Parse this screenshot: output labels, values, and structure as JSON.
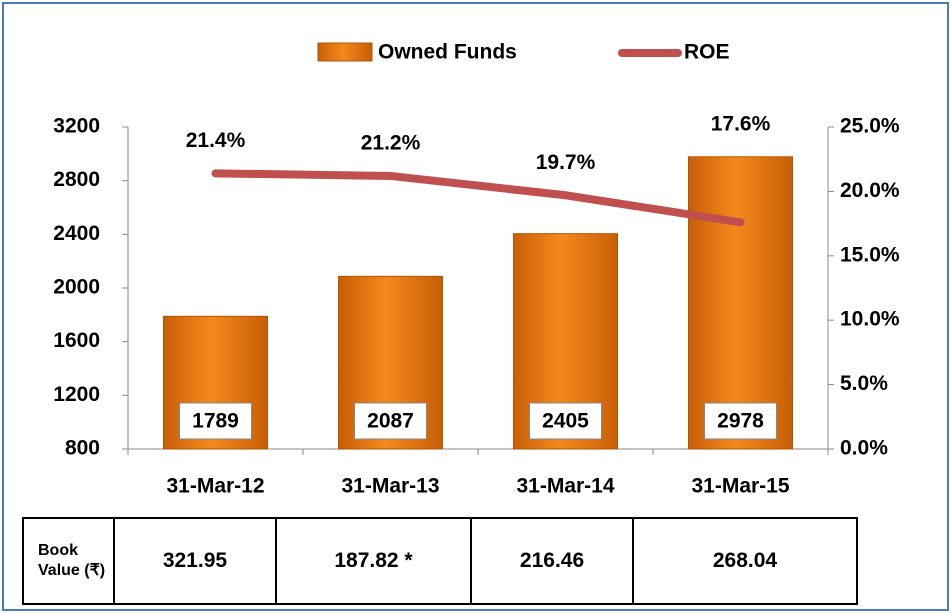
{
  "chart_data": {
    "type": "bar",
    "categories": [
      "31-Mar-12",
      "31-Mar-13",
      "31-Mar-14",
      "31-Mar-15"
    ],
    "series": [
      {
        "name": "Owned Funds",
        "color": "#f07d12",
        "values": [
          1789,
          2087,
          2405,
          2978
        ]
      },
      {
        "name": "ROE",
        "type": "line",
        "axis": "y2",
        "color": "#c0504d",
        "values": [
          21.4,
          21.2,
          19.7,
          17.6
        ],
        "value_labels": [
          "21.4%",
          "21.2%",
          "19.7%",
          "17.6%"
        ]
      }
    ],
    "ylim": [
      800,
      3200
    ],
    "yticks": [
      800,
      1200,
      1600,
      2000,
      2400,
      2800,
      3200
    ],
    "y2lim": [
      0,
      25
    ],
    "y2ticks": [
      {
        "value": 0,
        "label": "0.0%"
      },
      {
        "value": 5,
        "label": "5.0%"
      },
      {
        "value": 10,
        "label": "10.0%"
      },
      {
        "value": 15,
        "label": "15.0%"
      },
      {
        "value": 20,
        "label": "20.0%"
      },
      {
        "value": 25,
        "label": "25.0%"
      }
    ],
    "legend": "top"
  },
  "table": {
    "header": "Book Value (₹)",
    "cells": [
      "321.95",
      "187.82 *",
      "216.46",
      "268.04"
    ]
  }
}
